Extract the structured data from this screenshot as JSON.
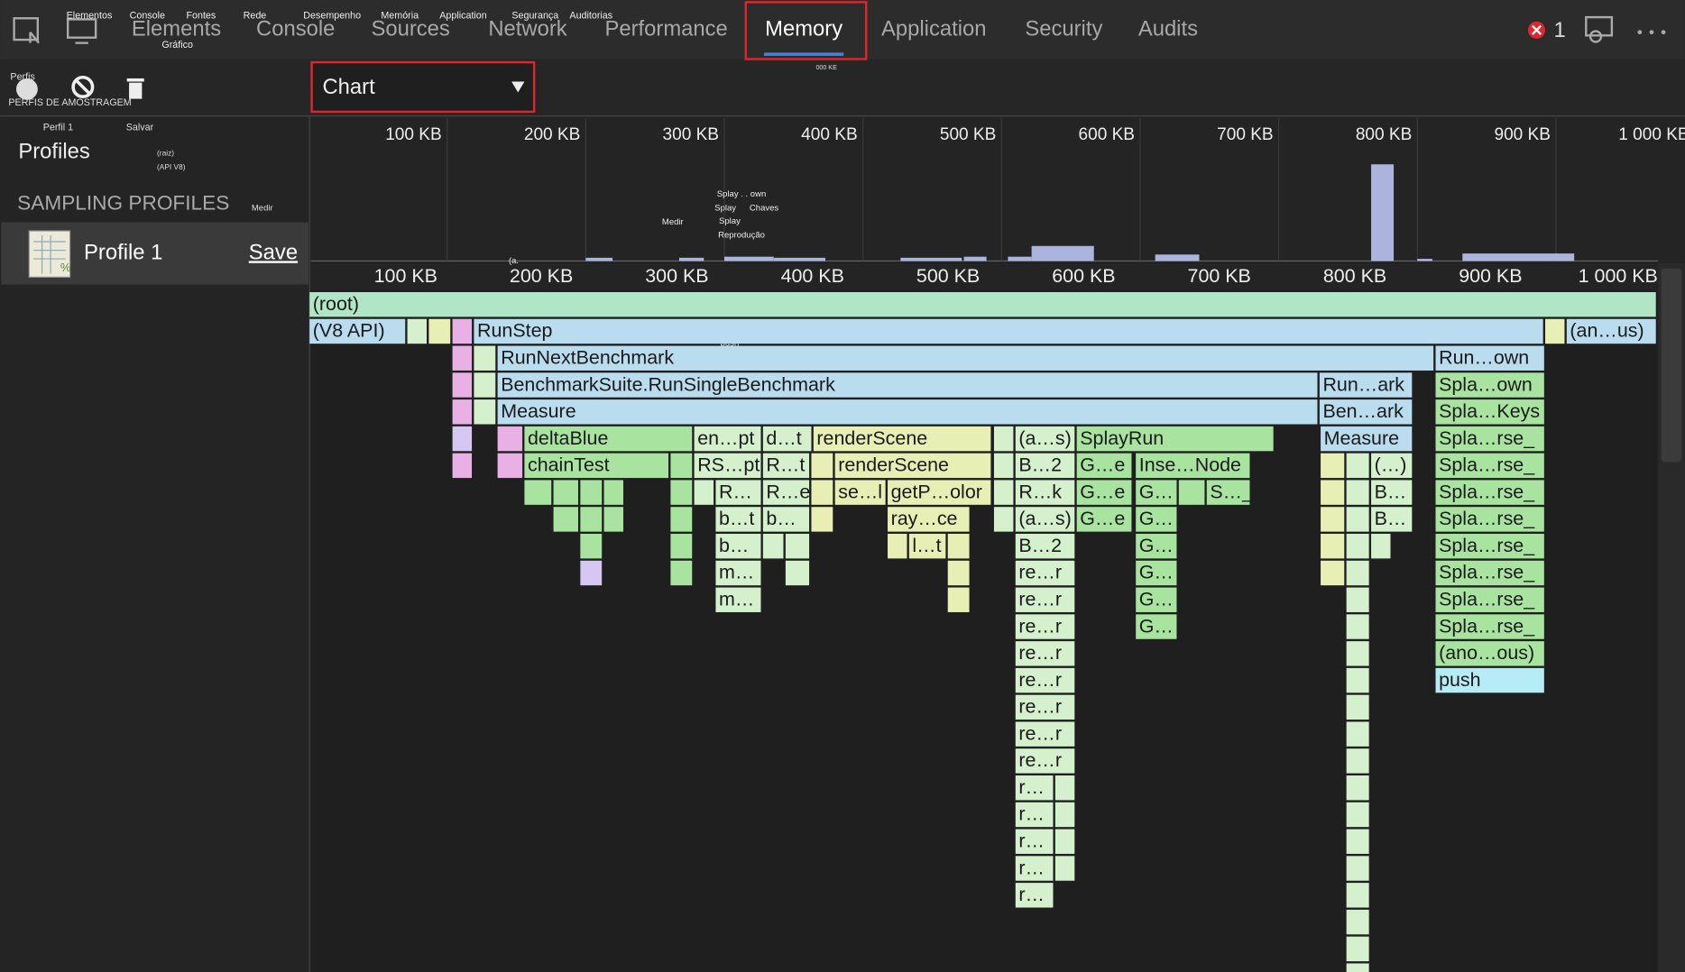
{
  "tabs": {
    "items": [
      "Elements",
      "Console",
      "Sources",
      "Network",
      "Performance",
      "Memory",
      "Application",
      "Security",
      "Audits"
    ],
    "overlay": [
      "Elementos",
      "Console",
      "Fontes",
      "Gráfico",
      "Rede",
      "Desempenho",
      "Memória",
      "Application",
      "Segurança",
      "Auditorias"
    ]
  },
  "error_count": 1,
  "toolbar": {
    "overlay_perfis": "Perfis",
    "overlay_sampling": "PERFIS DE AMOSTRAGEM",
    "view_select": "Chart",
    "overlay_kb": "000 KE"
  },
  "sidebar": {
    "overlay_profile": "Perfil 1",
    "overlay_save": "Salvar",
    "title": "Profiles",
    "overlay_root": "(raiz)",
    "overlay_api": "(API V8)",
    "section": "SAMPLING PROFILES",
    "overlay_measure": "Medir",
    "profile_name": "Profile 1",
    "save": "Save"
  },
  "overview": {
    "ticks": [
      "100 KB",
      "200 KB",
      "300 KB",
      "400 KB",
      "500 KB",
      "600 KB",
      "700 KB",
      "800 KB",
      "900 KB",
      "1 000 KB"
    ],
    "overlay": [
      "Splay . . own",
      "Splay",
      "Chaves",
      "Medir",
      "Splay",
      "Reprodução",
      "(a.",
      "push"
    ]
  },
  "axis": {
    "ticks": [
      "100 KB",
      "200 KB",
      "300 KB",
      "400 KB",
      "500 KB",
      "600 KB",
      "700 KB",
      "800 KB",
      "900 KB",
      "1 000 KB"
    ]
  },
  "flame": {
    "labels": [
      "(root)",
      "(V8 API)",
      "RunStep",
      "(an…us)",
      "RunNextBenchmark",
      "Run…own",
      "BenchmarkSuite.RunSingleBenchmark",
      "Run…ark",
      "Spla…own",
      "Measure",
      "Ben…ark",
      "Spla…Keys",
      "deltaBlue",
      "en…pt",
      "d…t",
      "renderScene",
      "(a…s)",
      "SplayRun",
      "Measure",
      "Spla…rse_",
      "chainTest",
      "RS…pt",
      "R…t",
      "renderScene",
      "B…2",
      "G…e",
      "Inse…Node",
      "(…)",
      "Spla…rse_",
      "R…",
      "R…e",
      "se…l",
      "getP…olor",
      "R…k",
      "G…e",
      "G…",
      "S…_",
      "B…",
      "Spla…rse_",
      "b…t",
      "b…",
      "ray…ce",
      "(a…s)",
      "G…e",
      "G…",
      "B…",
      "Spla…rse_",
      "b…",
      "l…t",
      "B…2",
      "G…",
      "Spla…rse_",
      "m…",
      "re…r",
      "G…",
      "Spla…rse_",
      "m…",
      "re…r",
      "G…",
      "Spla…rse_",
      "re…r",
      "G…",
      "Spla…rse_",
      "re…r",
      "(ano…ous)",
      "re…r",
      "push",
      "re…r",
      "re…r",
      "re…r",
      "r…",
      "r…",
      "r…",
      "r…",
      "r…"
    ]
  }
}
